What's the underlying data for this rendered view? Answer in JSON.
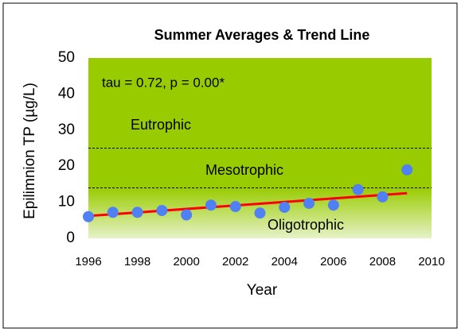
{
  "chart_data": {
    "type": "scatter",
    "title": "Summer Averages  & Trend Line",
    "x_label": "Year",
    "y_label": "Epilimnion TP (µg/L)",
    "annotation": "tau = 0.72, p = 0.00*",
    "x": [
      1996,
      1997,
      1998,
      1999,
      2000,
      2001,
      2002,
      2003,
      2004,
      2005,
      2006,
      2007,
      2008,
      2009
    ],
    "values": [
      6,
      7.2,
      7.2,
      7.7,
      6.5,
      9.2,
      8.8,
      7,
      8.6,
      9.7,
      9.2,
      13.5,
      11.5,
      19
    ],
    "color": "#4f81f5",
    "trend": {
      "x": [
        1996,
        2009
      ],
      "values": [
        6.2,
        12.5
      ],
      "color": "#ff0000"
    },
    "thresholds": [
      25,
      14
    ],
    "zones": [
      "Eutrophic",
      "Mesotrophic",
      "Oligotrophic"
    ],
    "xlim": [
      1996,
      2010
    ],
    "xticks": [
      1996,
      1998,
      2000,
      2002,
      2004,
      2006,
      2008,
      2010
    ],
    "ylim": [
      0,
      50
    ],
    "yticks": [
      0,
      10,
      20,
      30,
      40,
      50
    ]
  }
}
